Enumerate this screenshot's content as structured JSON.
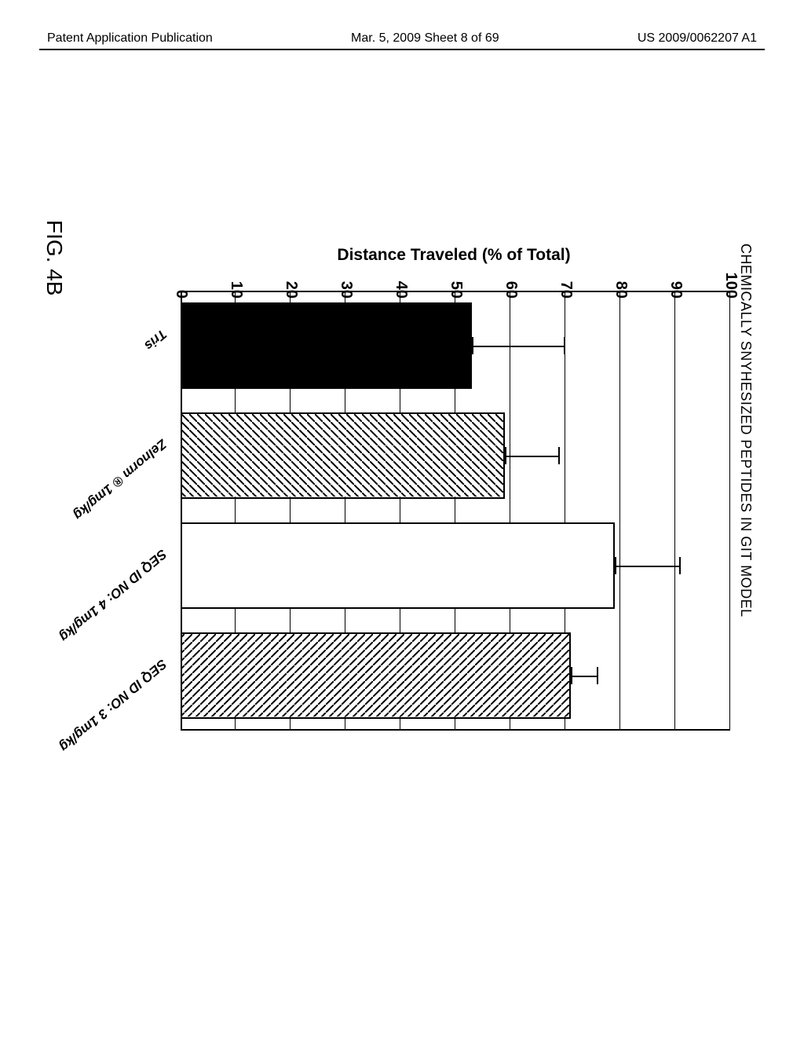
{
  "header": {
    "left": "Patent Application Publication",
    "mid": "Mar. 5, 2009  Sheet 8 of 69",
    "right": "US 2009/0062207 A1"
  },
  "chart": {
    "type": "bar",
    "title": "CHEMICALLY SNYHESIZED PEPTIDES IN GIT MODEL",
    "y_label": "Distance Traveled (% of Total)",
    "y_min": 0,
    "y_max": 100,
    "y_step": 10,
    "grid_color": "#000000",
    "background": "#ffffff",
    "bars": [
      {
        "label": "Tris",
        "value": 53,
        "err": 17,
        "fill": "solid-black"
      },
      {
        "label": "Zelnorm ® 1mg/kg",
        "value": 59,
        "err": 10,
        "fill": "hatch-forward"
      },
      {
        "label": "SEQ ID NO: 4 1mg/kg",
        "value": 79,
        "err": 12,
        "fill": "white"
      },
      {
        "label": "SEQ ID NO: 3 1mg/kg",
        "value": 71,
        "err": 5,
        "fill": "hatch-back"
      }
    ]
  },
  "figure_label": "FIG. 4B"
}
